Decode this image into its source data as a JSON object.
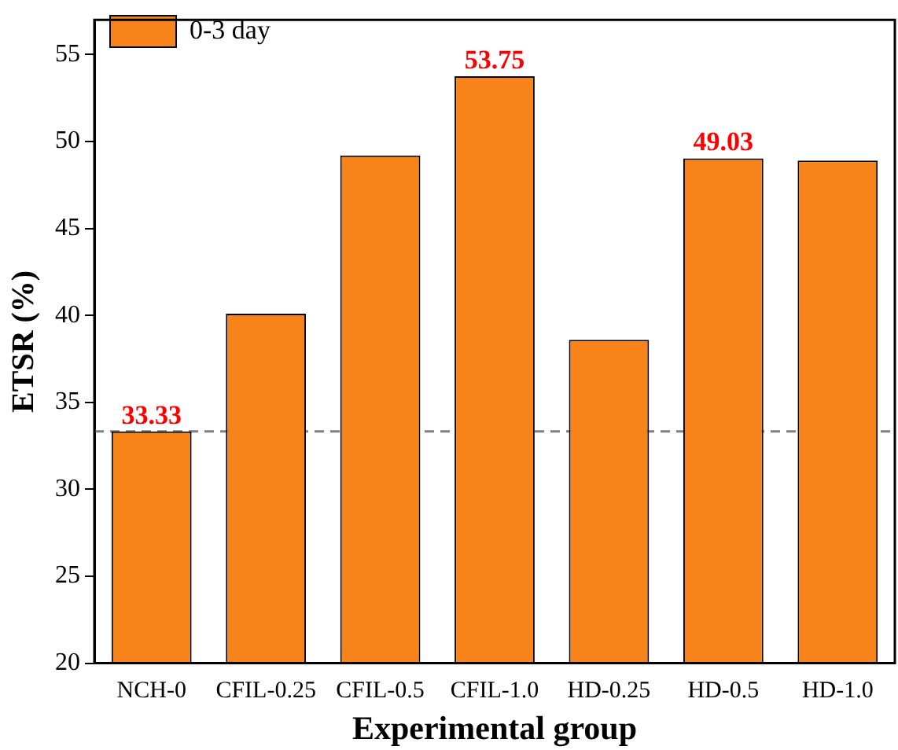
{
  "chart_data": {
    "type": "bar",
    "xlabel": "Experimental group",
    "ylabel": "ETSR (%)",
    "categories": [
      "NCH-0",
      "CFIL-0.25",
      "CFIL-0.5",
      "CFIL-1.0",
      "HD-0.25",
      "HD-0.5",
      "HD-1.0"
    ],
    "series": [
      {
        "name": "0-3 day",
        "color": "#f7841a",
        "values": [
          33.33,
          40.1,
          49.2,
          53.75,
          38.6,
          49.03,
          48.9
        ],
        "value_labels": [
          "33.33",
          null,
          null,
          "53.75",
          null,
          "49.03",
          null
        ]
      }
    ],
    "ylim": [
      20,
      57
    ],
    "yticks": [
      20,
      25,
      30,
      35,
      40,
      45,
      50,
      55
    ],
    "grid": false,
    "legend": "top left",
    "ref_lines": [
      {
        "axis": "y",
        "value": 33.33,
        "color": "#808080",
        "line_style": "dashed"
      }
    ]
  }
}
